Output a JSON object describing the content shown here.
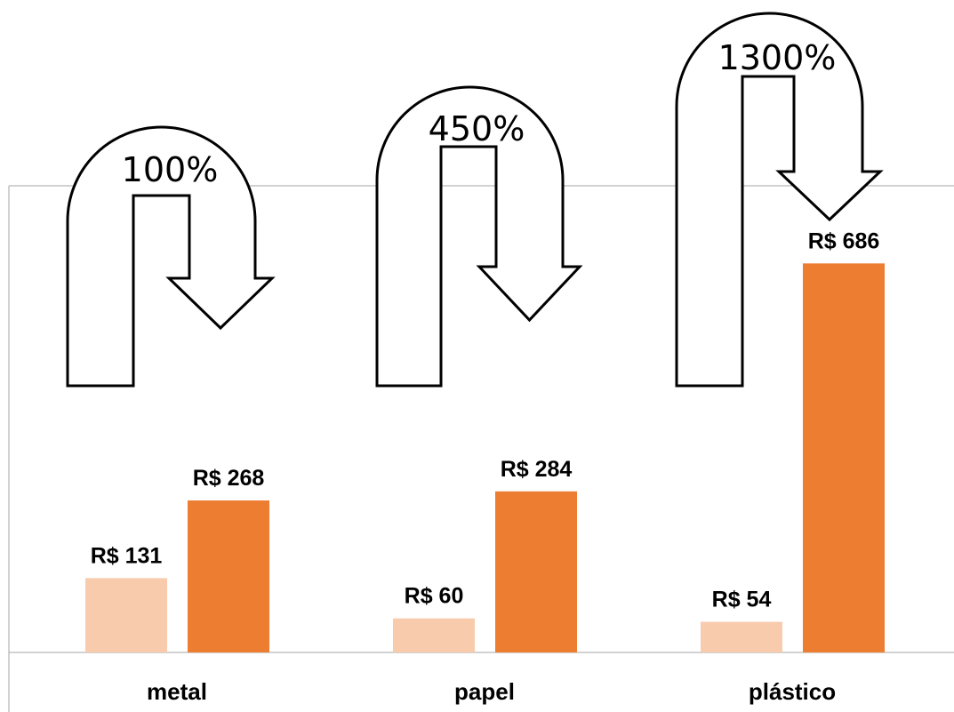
{
  "chart_data": {
    "type": "bar",
    "categories": [
      "metal",
      "papel",
      "plástico"
    ],
    "series": [
      {
        "values": [
          131,
          60,
          54
        ],
        "color": "#F8CBAD"
      },
      {
        "values": [
          268,
          284,
          686
        ],
        "color": "#ED7D31"
      }
    ],
    "data_labels": [
      [
        "R$ 131",
        "R$ 60",
        "R$ 54"
      ],
      [
        "R$ 268",
        "R$ 284",
        "R$ 686"
      ]
    ],
    "annotations": [
      "100%",
      "450%",
      "1300%"
    ],
    "title": "",
    "xlabel": "",
    "ylabel": "",
    "ylim": [
      0,
      800
    ],
    "grid": false,
    "legend": "none"
  }
}
